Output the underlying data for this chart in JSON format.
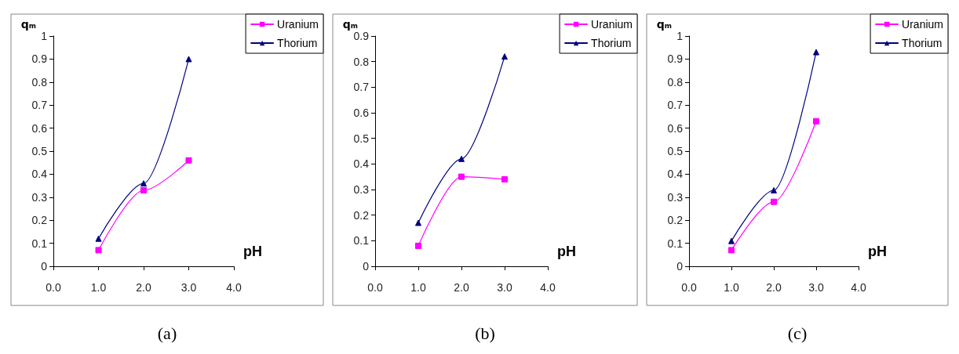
{
  "chart_data": [
    {
      "type": "line",
      "xlabel": "pH",
      "ylabel": "qₘ",
      "annotations": [
        "(a)"
      ],
      "x": [
        1,
        2,
        3
      ],
      "xlim": [
        0,
        4
      ],
      "xticks": [
        {
          "value": 0,
          "label": "0.0"
        },
        {
          "value": 1,
          "label": "1.0"
        },
        {
          "value": 2,
          "label": "2.0"
        },
        {
          "value": 3,
          "label": "3.0"
        },
        {
          "value": 4,
          "label": "4.0"
        }
      ],
      "ylim": [
        0,
        1
      ],
      "yticks": [
        0,
        0.1,
        0.2,
        0.3,
        0.4,
        0.5,
        0.6,
        0.7,
        0.8,
        0.9,
        1
      ],
      "grid": false,
      "legend": "top right",
      "line_style": "solid",
      "series": [
        {
          "name": "Uranium",
          "color": "#ff00ff",
          "marker": "square",
          "values": [
            0.07,
            0.33,
            0.46
          ]
        },
        {
          "name": "Thorium",
          "color": "#000080",
          "marker": "triangle",
          "values": [
            0.12,
            0.36,
            0.9
          ]
        }
      ]
    },
    {
      "type": "line",
      "xlabel": "pH",
      "ylabel": "qₘ",
      "annotations": [
        "(b)"
      ],
      "x": [
        1,
        2,
        3
      ],
      "xlim": [
        0,
        4
      ],
      "xticks": [
        {
          "value": 0,
          "label": "0.0"
        },
        {
          "value": 1,
          "label": "1.0"
        },
        {
          "value": 2,
          "label": "2.0"
        },
        {
          "value": 3,
          "label": "3.0"
        },
        {
          "value": 4,
          "label": "4.0"
        }
      ],
      "ylim": [
        0,
        0.9
      ],
      "yticks": [
        0,
        0.1,
        0.2,
        0.3,
        0.4,
        0.5,
        0.6,
        0.7,
        0.8,
        0.9
      ],
      "grid": false,
      "legend": "top right",
      "line_style": "solid",
      "series": [
        {
          "name": "Uranium",
          "color": "#ff00ff",
          "marker": "square",
          "values": [
            0.08,
            0.35,
            0.34
          ]
        },
        {
          "name": "Thorium",
          "color": "#000080",
          "marker": "triangle",
          "values": [
            0.17,
            0.42,
            0.82
          ]
        }
      ]
    },
    {
      "type": "line",
      "xlabel": "pH",
      "ylabel": "qₘ",
      "annotations": [
        "(c)"
      ],
      "x": [
        1,
        2,
        3
      ],
      "xlim": [
        0,
        4
      ],
      "xticks": [
        {
          "value": 0,
          "label": "0.0"
        },
        {
          "value": 1,
          "label": "1.0"
        },
        {
          "value": 2,
          "label": "2.0"
        },
        {
          "value": 3,
          "label": "3.0"
        },
        {
          "value": 4,
          "label": "4.0"
        }
      ],
      "ylim": [
        0,
        1
      ],
      "yticks": [
        0,
        0.1,
        0.2,
        0.3,
        0.4,
        0.5,
        0.6,
        0.7,
        0.8,
        0.9,
        1
      ],
      "grid": false,
      "legend": "top right",
      "line_style": "solid",
      "series": [
        {
          "name": "Uranium",
          "color": "#ff00ff",
          "marker": "square",
          "values": [
            0.07,
            0.28,
            0.63
          ]
        },
        {
          "name": "Thorium",
          "color": "#000080",
          "marker": "triangle",
          "values": [
            0.11,
            0.33,
            0.93
          ]
        }
      ]
    }
  ]
}
